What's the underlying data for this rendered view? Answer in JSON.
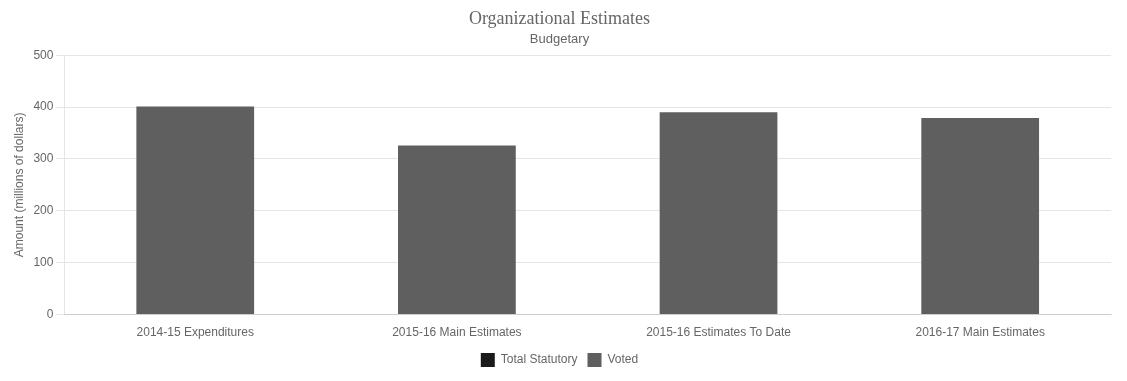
{
  "chart_data": {
    "type": "bar",
    "title": "Organizational Estimates",
    "subtitle": "Budgetary",
    "categories": [
      "2014-15 Expenditures",
      "2015-16 Main Estimates",
      "2015-16 Estimates To Date",
      "2016-17 Main Estimates"
    ],
    "series": [
      {
        "name": "Total Statutory",
        "color": "#1a1a1a",
        "values": [
          null,
          null,
          null,
          null
        ]
      },
      {
        "name": "Voted",
        "color": "#5f5f5f",
        "values": [
          401,
          326,
          390,
          379
        ]
      }
    ],
    "ylabel": "Amount (millions of dollars)",
    "ylim": [
      0,
      500
    ],
    "yticks": [
      0,
      100,
      200,
      300,
      400,
      500
    ],
    "grid": true,
    "legend": "bottom"
  }
}
